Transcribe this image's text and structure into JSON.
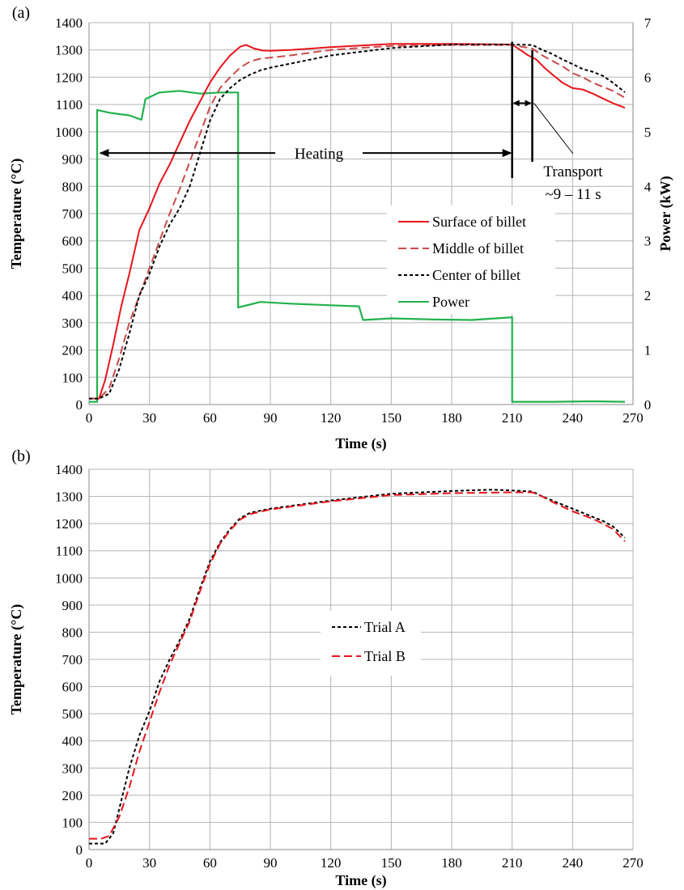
{
  "chart_data": [
    {
      "panel_label": "(a)",
      "type": "line",
      "xlabel": "Time (s)",
      "ylabel": "Temperature (°C)",
      "y2label": "Power (kW)",
      "xlim": [
        0,
        270
      ],
      "ylim": [
        0,
        1400
      ],
      "y2lim": [
        0,
        7
      ],
      "xticks": [
        0,
        30,
        60,
        90,
        120,
        150,
        180,
        210,
        240,
        270
      ],
      "yticks": [
        0,
        100,
        200,
        300,
        400,
        500,
        600,
        700,
        800,
        900,
        1000,
        1100,
        1200,
        1300,
        1400
      ],
      "y2ticks": [
        0,
        1,
        2,
        3,
        4,
        5,
        6,
        7
      ],
      "grid": true,
      "legend_position": "center-right",
      "series": [
        {
          "name": "Surface of billet",
          "color": "#e8141b",
          "dash": "solid",
          "axis": "left",
          "x": [
            0,
            5,
            8,
            12,
            16,
            20,
            25,
            30,
            35,
            40,
            45,
            50,
            55,
            60,
            65,
            70,
            75,
            78,
            82,
            86,
            90,
            100,
            120,
            150,
            180,
            210,
            214,
            218,
            222,
            226,
            230,
            235,
            240,
            245,
            250,
            255,
            260,
            266
          ],
          "y": [
            22,
            22,
            90,
            220,
            360,
            480,
            640,
            720,
            810,
            880,
            960,
            1040,
            1110,
            1180,
            1235,
            1280,
            1312,
            1318,
            1305,
            1298,
            1297,
            1300,
            1310,
            1322,
            1322,
            1320,
            1300,
            1280,
            1265,
            1235,
            1210,
            1180,
            1160,
            1155,
            1140,
            1122,
            1105,
            1088
          ]
        },
        {
          "name": "Middle of billet",
          "color": "#c94a4a",
          "dash": "long-dash",
          "axis": "left",
          "x": [
            0,
            5,
            10,
            15,
            20,
            25,
            30,
            35,
            40,
            45,
            50,
            55,
            60,
            65,
            70,
            75,
            80,
            85,
            90,
            100,
            120,
            150,
            180,
            210,
            220,
            225,
            230,
            235,
            240,
            245,
            250,
            255,
            260,
            266
          ],
          "y": [
            22,
            22,
            60,
            170,
            300,
            400,
            500,
            600,
            700,
            790,
            890,
            990,
            1090,
            1160,
            1200,
            1235,
            1258,
            1268,
            1272,
            1280,
            1300,
            1315,
            1318,
            1318,
            1305,
            1280,
            1260,
            1240,
            1215,
            1200,
            1180,
            1165,
            1150,
            1125
          ]
        },
        {
          "name": "Center of billet",
          "color": "#000000",
          "dash": "short-dash",
          "axis": "left",
          "x": [
            0,
            5,
            10,
            15,
            20,
            25,
            30,
            35,
            40,
            45,
            50,
            55,
            60,
            65,
            70,
            75,
            80,
            85,
            90,
            100,
            120,
            150,
            180,
            210,
            220,
            225,
            230,
            235,
            240,
            245,
            250,
            255,
            260,
            266
          ],
          "y": [
            22,
            22,
            40,
            130,
            260,
            400,
            480,
            580,
            660,
            720,
            800,
            920,
            1040,
            1120,
            1160,
            1190,
            1210,
            1225,
            1235,
            1250,
            1280,
            1307,
            1320,
            1320,
            1318,
            1300,
            1285,
            1265,
            1248,
            1230,
            1220,
            1205,
            1180,
            1145
          ]
        },
        {
          "name": "Power",
          "color": "#22b14c",
          "dash": "solid",
          "axis": "right",
          "x": [
            0,
            4,
            4,
            10,
            20,
            26,
            28,
            35,
            45,
            55,
            65,
            74,
            74,
            85,
            100,
            120,
            134,
            136,
            150,
            170,
            190,
            210,
            210,
            230,
            250,
            266
          ],
          "y": [
            0.05,
            0.05,
            5.4,
            5.35,
            5.3,
            5.22,
            5.6,
            5.72,
            5.75,
            5.7,
            5.72,
            5.72,
            1.78,
            1.88,
            1.85,
            1.82,
            1.8,
            1.55,
            1.58,
            1.56,
            1.55,
            1.6,
            0.05,
            0.05,
            0.06,
            0.05
          ]
        }
      ],
      "annotations": [
        {
          "text": "Heating",
          "from_x": 5,
          "to_x": 210,
          "y": 922
        },
        {
          "text": "Transport",
          "x": 221,
          "y": 870
        },
        {
          "text": "~9 – 11 s",
          "x": 221,
          "y": 780
        }
      ]
    },
    {
      "panel_label": "(b)",
      "type": "line",
      "xlabel": "Time (s)",
      "ylabel": "Temperature (°C)",
      "xlim": [
        0,
        270
      ],
      "ylim": [
        0,
        1400
      ],
      "xticks": [
        0,
        30,
        60,
        90,
        120,
        150,
        180,
        210,
        240,
        270
      ],
      "yticks": [
        0,
        100,
        200,
        300,
        400,
        500,
        600,
        700,
        800,
        900,
        1000,
        1100,
        1200,
        1300,
        1400
      ],
      "grid": true,
      "legend_position": "center",
      "series": [
        {
          "name": "Trial A",
          "color": "#000000",
          "dash": "short-dash",
          "x": [
            0,
            8,
            12,
            16,
            20,
            25,
            30,
            35,
            40,
            45,
            50,
            55,
            60,
            65,
            70,
            75,
            80,
            90,
            100,
            120,
            150,
            180,
            200,
            210,
            220,
            225,
            230,
            240,
            250,
            255,
            260,
            266
          ],
          "y": [
            22,
            22,
            60,
            180,
            300,
            420,
            510,
            620,
            700,
            770,
            850,
            960,
            1060,
            1130,
            1180,
            1220,
            1240,
            1255,
            1265,
            1285,
            1310,
            1320,
            1325,
            1322,
            1318,
            1300,
            1285,
            1255,
            1225,
            1210,
            1190,
            1148
          ]
        },
        {
          "name": "Trial B",
          "color": "#e8141b",
          "dash": "long-dash",
          "x": [
            0,
            6,
            10,
            15,
            20,
            25,
            30,
            35,
            40,
            45,
            50,
            55,
            60,
            65,
            70,
            75,
            80,
            90,
            100,
            120,
            150,
            180,
            210,
            220,
            225,
            230,
            240,
            250,
            255,
            260,
            266
          ],
          "y": [
            40,
            40,
            50,
            120,
            230,
            360,
            470,
            580,
            680,
            760,
            840,
            950,
            1050,
            1125,
            1175,
            1215,
            1235,
            1252,
            1262,
            1282,
            1305,
            1312,
            1315,
            1315,
            1300,
            1280,
            1245,
            1218,
            1200,
            1180,
            1135
          ]
        }
      ]
    }
  ]
}
